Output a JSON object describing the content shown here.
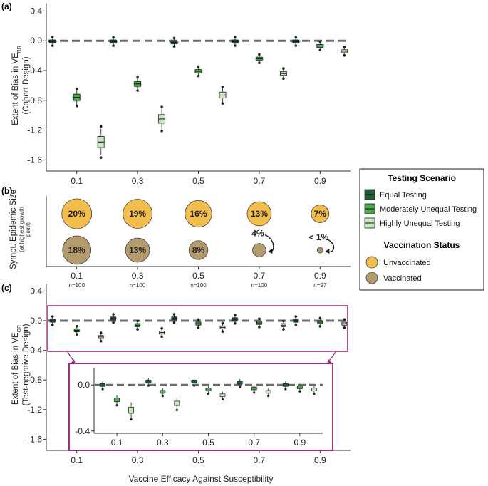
{
  "colors": {
    "equal": "#1f5b35",
    "moderate": "#4daa50",
    "high": "#c8e6c0",
    "unvaccinated": "#f2bd4d",
    "vaccinated": "#b39b6e",
    "inset_border": "#9a2f7a",
    "dash": "#6b6b6b"
  },
  "chart_data": [
    {
      "id": "a",
      "type": "boxplot",
      "panel_label": "(a)",
      "ylabel_prefix": "Extent of Bias in VE",
      "ylabel_sub": "RR",
      "ylabel_line2": "(Cohort Design)",
      "ylim": [
        -1.75,
        0.5
      ],
      "yticks": [
        0.4,
        0.0,
        -0.4,
        -0.8,
        -1.2,
        -1.6
      ],
      "ytick_labels": [
        "0.4",
        "0.0",
        "-0.4",
        "-0.8",
        "-1.2",
        "-1.6"
      ],
      "categories": [
        "0.1",
        "0.3",
        "0.5",
        "0.7",
        "0.9"
      ],
      "reference_line": 0,
      "series": [
        {
          "name": "Equal Testing",
          "values": [
            -0.01,
            -0.01,
            -0.02,
            -0.01,
            -0.01
          ]
        },
        {
          "name": "Moderately Unequal Testing",
          "values": [
            -0.76,
            -0.58,
            -0.41,
            -0.24,
            -0.07
          ]
        },
        {
          "name": "Highly Unequal Testing",
          "values": [
            -1.36,
            -1.05,
            -0.73,
            -0.44,
            -0.14
          ]
        }
      ]
    },
    {
      "id": "b",
      "type": "bubble",
      "panel_label": "(b)",
      "ylabel_line1": "Sympt. Epidemic Size",
      "ylabel_line2": "(at highest growth",
      "ylabel_line3": "point)",
      "categories": [
        "0.1",
        "0.3",
        "0.5",
        "0.7",
        "0.9"
      ],
      "sample_sizes": [
        "n=100",
        "n=100",
        "n=100",
        "n=100",
        "n=97"
      ],
      "series": [
        {
          "name": "Unvaccinated",
          "values": [
            20,
            19,
            16,
            13,
            7
          ],
          "labels": [
            "20%",
            "19%",
            "16%",
            "13%",
            "7%"
          ]
        },
        {
          "name": "Vaccinated",
          "values": [
            18,
            13,
            8,
            4,
            0.5
          ],
          "labels": [
            "18%",
            "13%",
            "8%",
            "4%",
            "< 1%"
          ]
        }
      ]
    },
    {
      "id": "c",
      "type": "boxplot",
      "panel_label": "(c)",
      "ylabel_prefix": "Extent of Bias in VE",
      "ylabel_sub": "OR",
      "ylabel_line2": "(Test-negative Design)",
      "xlabel": "Vaccine Efficacy Against Susceptibility",
      "ylim": [
        -1.75,
        0.5
      ],
      "yticks": [
        0.4,
        0.0,
        -0.4,
        -0.8,
        -1.2,
        -1.6
      ],
      "ytick_labels": [
        "0.4",
        "0.0",
        "-0.4",
        "-0.8",
        "-1.2",
        "-1.6"
      ],
      "categories": [
        "0.1",
        "0.3",
        "0.5",
        "0.7",
        "0.9"
      ],
      "reference_line": 0,
      "series": [
        {
          "name": "Equal Testing",
          "values": [
            0.0,
            0.03,
            0.03,
            0.02,
            0.0
          ]
        },
        {
          "name": "Moderately Unequal Testing",
          "values": [
            -0.13,
            -0.06,
            -0.04,
            -0.03,
            -0.02
          ]
        },
        {
          "name": "Highly Unequal Testing",
          "values": [
            -0.22,
            -0.16,
            -0.09,
            -0.06,
            -0.04
          ]
        }
      ],
      "inset": {
        "ylim": [
          -0.42,
          0.15
        ],
        "yticks": [
          0.0,
          -0.4
        ],
        "ytick_labels": [
          "0.0",
          "-0.4"
        ],
        "categories": [
          "0.1",
          "0.3",
          "0.5",
          "0.7",
          "0.9"
        ]
      }
    }
  ],
  "legend": {
    "testing_title": "Testing Scenario",
    "testing_items": [
      "Equal Testing",
      "Moderately Unequal Testing",
      "Highly Unequal Testing"
    ],
    "vaccination_title": "Vaccination Status",
    "vaccination_items": [
      "Unvaccinated",
      "Vaccinated"
    ]
  }
}
